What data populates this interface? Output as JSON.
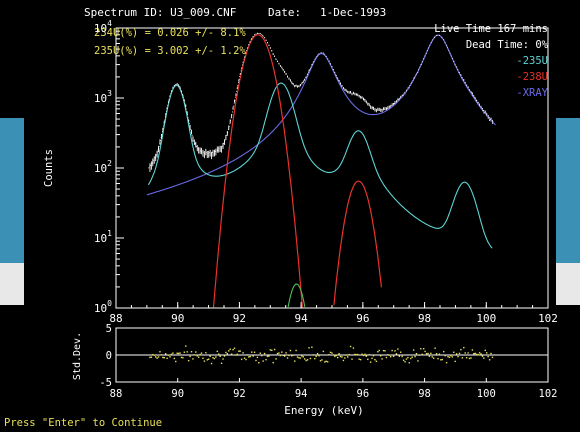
{
  "header": {
    "spectrum_label": "Spectrum ID: U3_009.CNF",
    "date_label": "Date:",
    "date_value": "1-Dec-1993"
  },
  "results": {
    "line1": "234U(%) = 0.026 +/-  8.1%",
    "line2": "235U(%) = 3.002 +/-  1.2%"
  },
  "info": {
    "live_time": "Live Time 167 mins",
    "dead_time": "Dead Time:  0%"
  },
  "footer": {
    "prompt": "Press \"Enter\" to Continue"
  },
  "colors": {
    "background": "#000000",
    "axes": "#ffffff",
    "data": "#ffffff",
    "fit": "#ffffff",
    "235U": "#5fd3d3",
    "238U": "#e8322a",
    "XRAY": "#6a6ae6",
    "234U": "#4fc25a",
    "annotation": "#e8e05a",
    "residual": "#e8e05a"
  },
  "chart_data": [
    {
      "type": "line",
      "xlabel": "Energy (keV)",
      "ylabel": "Counts",
      "xlim": [
        88,
        102
      ],
      "ylim": [
        1,
        10000
      ],
      "yscale": "log",
      "x_ticks": [
        "88",
        "90",
        "92",
        "94",
        "96",
        "98",
        "100",
        "102"
      ],
      "y_ticks": [
        "10^0",
        "10^1",
        "10^2",
        "10^3",
        "10^4"
      ],
      "legend": [
        "-235U",
        "-238U",
        "-XRAY"
      ],
      "legend_position": "top-right",
      "peaks": [
        {
          "energy": 89.96,
          "counts": 1700,
          "series": "235U"
        },
        {
          "energy": 92.6,
          "counts": 9000,
          "series": "238U"
        },
        {
          "energy": 93.35,
          "counts": 2000,
          "series": "235U"
        },
        {
          "energy": 94.66,
          "counts": 4500,
          "series": "XRAY"
        },
        {
          "energy": 95.86,
          "counts": 400,
          "series": "235U"
        },
        {
          "energy": 98.44,
          "counts": 8000,
          "series": "XRAY"
        },
        {
          "energy": 99.3,
          "counts": 60,
          "series": "235U"
        }
      ],
      "series": [
        {
          "name": "-235U"
        },
        {
          "name": "-238U"
        },
        {
          "name": "-XRAY"
        },
        {
          "name": "234U"
        }
      ],
      "data_points": {
        "x_min": 89.1,
        "x_max": 100.2,
        "count": 240
      }
    },
    {
      "type": "scatter",
      "xlabel": "Energy (keV)",
      "ylabel": "Std.Dev.",
      "xlim": [
        88,
        102
      ],
      "ylim": [
        -5,
        5
      ],
      "x_ticks": [
        "88",
        "90",
        "92",
        "94",
        "96",
        "98",
        "100",
        "102"
      ],
      "y_ticks": [
        "5",
        "0",
        "-5"
      ],
      "residual_range": [
        -1.5,
        1.5
      ],
      "point_count": 240
    }
  ]
}
